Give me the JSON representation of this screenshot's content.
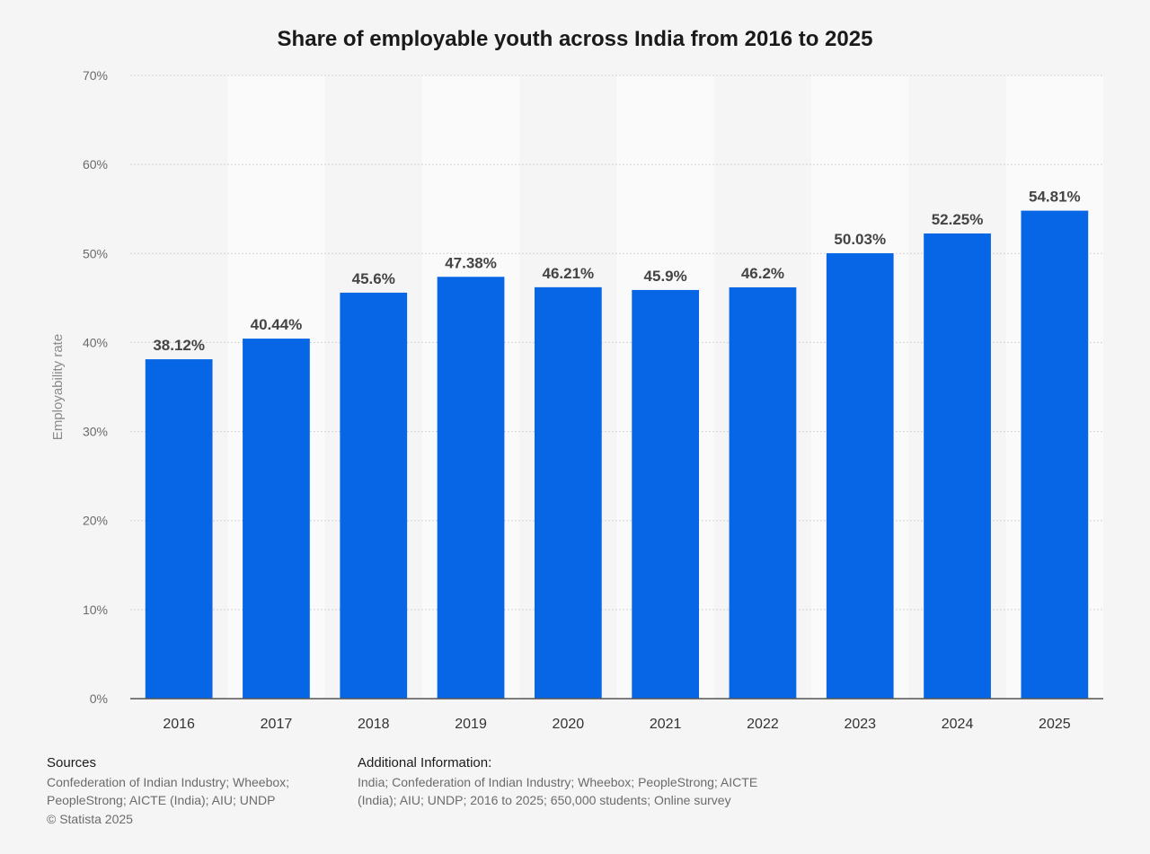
{
  "chart_data": {
    "type": "bar",
    "title": "Share of employable youth across India from 2016 to 2025",
    "xlabel": "",
    "ylabel": "Employability rate",
    "categories": [
      "2016",
      "2017",
      "2018",
      "2019",
      "2020",
      "2021",
      "2022",
      "2023",
      "2024",
      "2025"
    ],
    "values": [
      38.12,
      40.44,
      45.6,
      47.38,
      46.21,
      45.9,
      46.2,
      50.03,
      52.25,
      54.81
    ],
    "value_labels": [
      "38.12%",
      "40.44%",
      "45.6%",
      "47.38%",
      "46.21%",
      "45.9%",
      "46.2%",
      "50.03%",
      "52.25%",
      "54.81%"
    ],
    "ylim": [
      0,
      70
    ],
    "yticks": [
      0,
      10,
      20,
      30,
      40,
      50,
      60,
      70
    ],
    "ytick_labels": [
      "0%",
      "10%",
      "20%",
      "30%",
      "40%",
      "50%",
      "60%",
      "70%"
    ],
    "grid": true,
    "bar_color": "#0766e6"
  },
  "footer": {
    "sources_heading": "Sources",
    "sources_lines": [
      "Confederation of Indian Industry; Wheebox;",
      "PeopleStrong; AICTE (India); AIU; UNDP"
    ],
    "copyright": "© Statista 2025",
    "info_heading": "Additional Information:",
    "info_lines": [
      "India; Confederation of Indian Industry; Wheebox; PeopleStrong; AICTE",
      "(India); AIU; UNDP; 2016 to 2025; 650,000 students; Online survey"
    ]
  }
}
